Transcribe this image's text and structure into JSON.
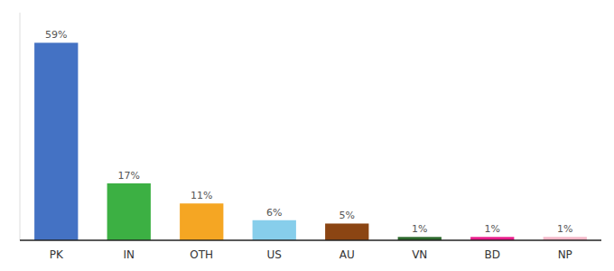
{
  "chart_data": {
    "type": "bar",
    "categories": [
      "PK",
      "IN",
      "OTH",
      "US",
      "AU",
      "VN",
      "BD",
      "NP"
    ],
    "values": [
      59,
      17,
      11,
      6,
      5,
      1,
      1,
      1
    ],
    "value_labels": [
      "59%",
      "17%",
      "11%",
      "6%",
      "5%",
      "1%",
      "1%",
      "1%"
    ],
    "colors": [
      "#4472c4",
      "#3cb043",
      "#f5a623",
      "#87ceeb",
      "#8b4513",
      "#2d6a2d",
      "#e91e8c",
      "#f4b8c8"
    ],
    "ylim": [
      0,
      68
    ],
    "data_labels": true,
    "grid": false,
    "tick_labels": "x"
  }
}
